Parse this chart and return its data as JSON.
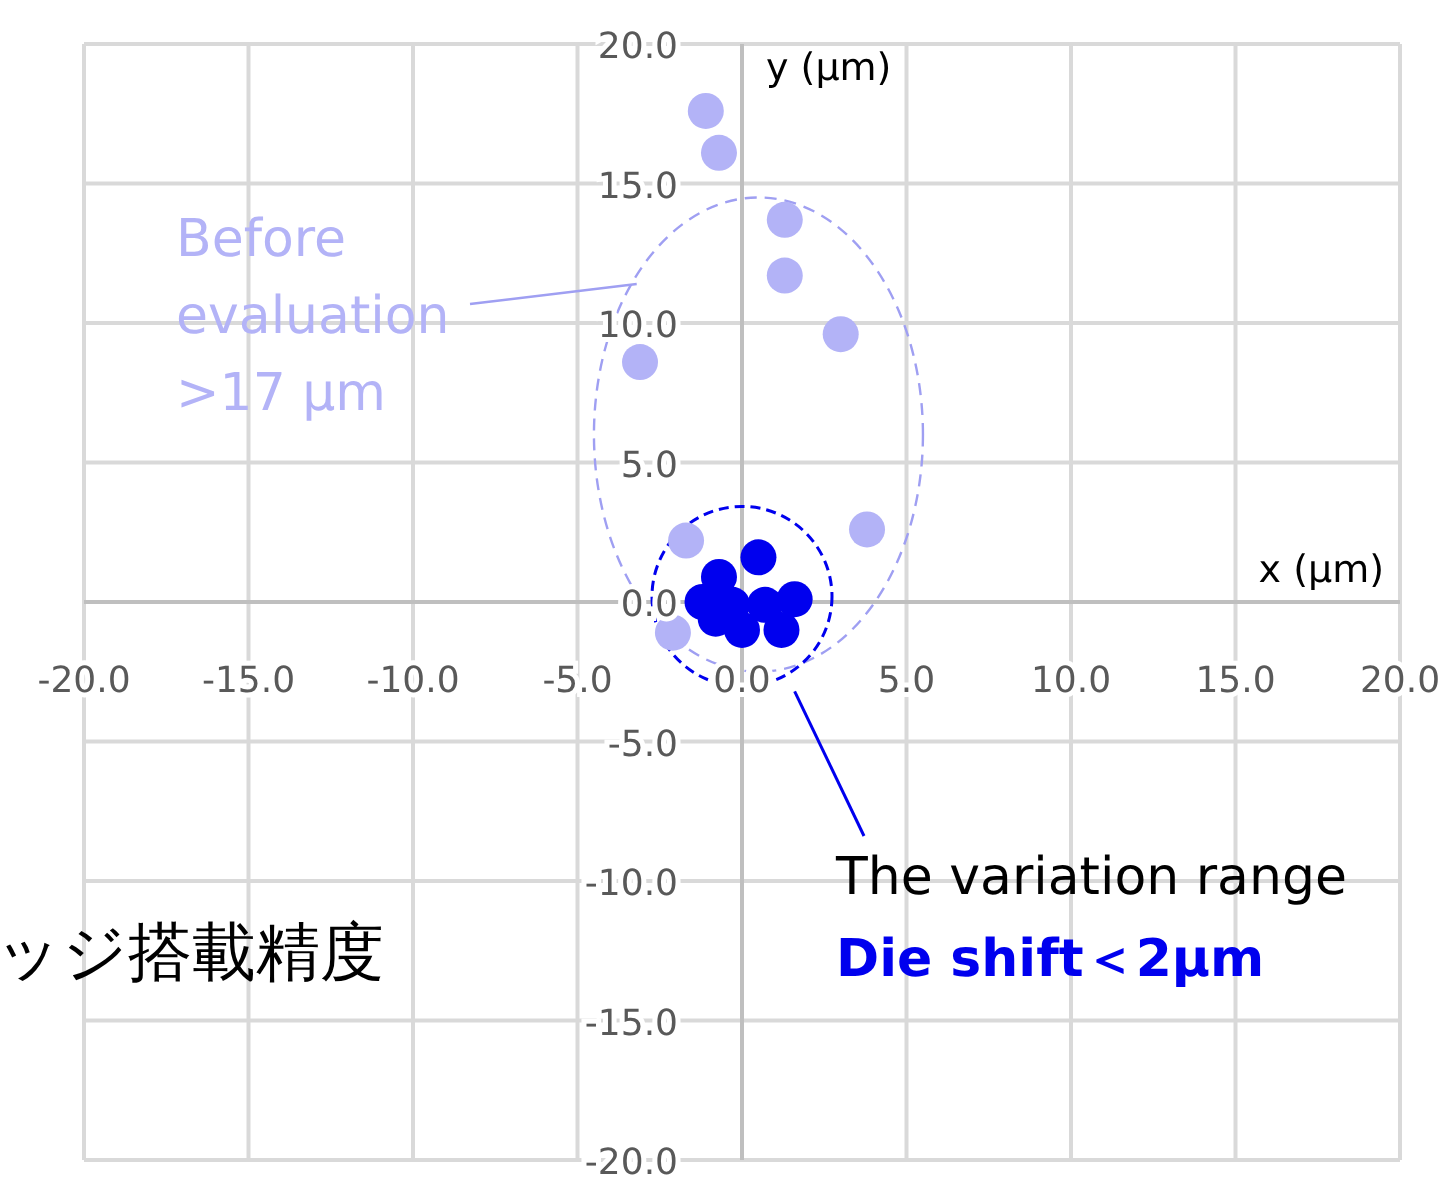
{
  "chart_data": {
    "type": "scatter",
    "xlabel": "x (µm)",
    "ylabel": "y (µm)",
    "xlim": [
      -20,
      20
    ],
    "ylim": [
      -20,
      20
    ],
    "xticks": [
      {
        "value": -20,
        "label": "-20.0"
      },
      {
        "value": -15,
        "label": "-15.0"
      },
      {
        "value": -10,
        "label": "-10.0"
      },
      {
        "value": -5,
        "label": "-5.0"
      },
      {
        "value": 0,
        "label": "0.0"
      },
      {
        "value": 5,
        "label": "5.0"
      },
      {
        "value": 10,
        "label": "10.0"
      },
      {
        "value": 15,
        "label": "15.0"
      },
      {
        "value": 20,
        "label": "20.0"
      }
    ],
    "yticks": [
      {
        "value": -20,
        "label": "-20.0"
      },
      {
        "value": -15,
        "label": "-15.0"
      },
      {
        "value": -10,
        "label": "-10.0"
      },
      {
        "value": -5,
        "label": "-5.0"
      },
      {
        "value": 0,
        "label": "0.0"
      },
      {
        "value": 5,
        "label": "5.0"
      },
      {
        "value": 10,
        "label": "10.0"
      },
      {
        "value": 15,
        "label": "15.0"
      },
      {
        "value": 20,
        "label": "20.0"
      }
    ],
    "grid": true,
    "legend": false,
    "marker": "circle",
    "series": [
      {
        "color": "#b3b3f7",
        "x": [
          -1.1,
          -0.7,
          1.3,
          1.3,
          3.0,
          -3.1,
          3.8,
          -1.7,
          -2.1
        ],
        "values": [
          17.6,
          16.1,
          13.7,
          11.7,
          9.6,
          8.6,
          2.6,
          2.2,
          -1.1
        ]
      },
      {
        "color": "#0000ee",
        "x": [
          0.5,
          -0.7,
          -1.2,
          -0.8,
          0.0,
          0.7,
          1.2,
          1.6,
          -0.3
        ],
        "values": [
          1.6,
          0.9,
          0.0,
          -0.6,
          -1.0,
          -0.1,
          -1.0,
          0.1,
          -0.1
        ]
      }
    ],
    "annotations": [
      "Before evaluation >17 µm",
      "The variation range",
      "Die shift＜2µm",
      "ッジ搭載精度"
    ]
  }
}
